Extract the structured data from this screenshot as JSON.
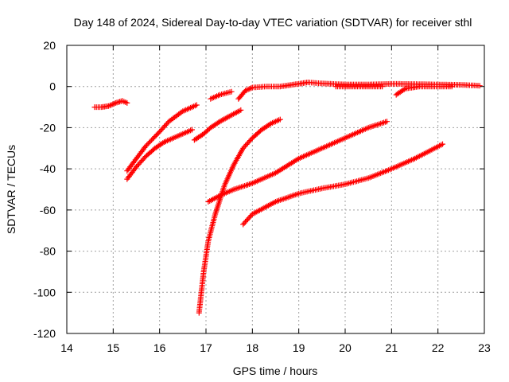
{
  "chart_data": {
    "type": "scatter",
    "title": "Day 148 of 2024, Sidereal Day-to-day VTEC variation (SDTVAR) for receiver sthl",
    "xlabel": "GPS time / hours",
    "ylabel": "SDTVAR / TECUs",
    "xlim": [
      14,
      23
    ],
    "ylim": [
      -120,
      20
    ],
    "xticks": [
      14,
      15,
      16,
      17,
      18,
      19,
      20,
      21,
      22,
      23
    ],
    "yticks": [
      -120,
      -100,
      -80,
      -60,
      -40,
      -20,
      0,
      20
    ],
    "xtick_labels": [
      "14",
      "15",
      "16",
      "17",
      "18",
      "19",
      "20",
      "21",
      "22",
      "23"
    ],
    "ytick_labels": [
      "-120",
      "-100",
      "-80",
      "-60",
      "-40",
      "-20",
      "0",
      "20"
    ],
    "grid": true,
    "marker": "+",
    "color": "#ff0000",
    "series": [
      {
        "name": "arc-1",
        "x": [
          14.6,
          14.75,
          14.9,
          15.05,
          15.2,
          15.3
        ],
        "y": [
          -10,
          -10,
          -9.5,
          -8,
          -7,
          -8
        ]
      },
      {
        "name": "arc-2",
        "x": [
          15.3,
          15.5,
          15.7,
          16.0,
          16.2,
          16.5,
          16.8
        ],
        "y": [
          -41,
          -35,
          -29,
          -22,
          -17,
          -12,
          -9
        ]
      },
      {
        "name": "arc-3",
        "x": [
          15.3,
          15.5,
          15.7,
          15.9,
          16.1,
          16.4,
          16.7
        ],
        "y": [
          -45,
          -39,
          -34,
          -30,
          -27,
          -24,
          -21
        ]
      },
      {
        "name": "arc-4",
        "x": [
          16.75,
          16.95,
          17.1,
          17.3,
          17.5,
          17.75
        ],
        "y": [
          -26,
          -23,
          -20,
          -17,
          -14.5,
          -11.5
        ]
      },
      {
        "name": "arc-5",
        "x": [
          17.1,
          17.3,
          17.55
        ],
        "y": [
          -6,
          -4,
          -2.5
        ]
      },
      {
        "name": "arc-6",
        "x": [
          17.7,
          17.85,
          18.0,
          18.3,
          18.6,
          18.9,
          19.2,
          19.5,
          20.0,
          20.5,
          21.0,
          21.5,
          22.0,
          22.5,
          22.9
        ],
        "y": [
          -6,
          -2,
          -0.5,
          0,
          0,
          1,
          2,
          1.5,
          1,
          1,
          1.3,
          1.2,
          1,
          0.8,
          0.4
        ]
      },
      {
        "name": "arc-7",
        "x": [
          19.8,
          20.3,
          20.8
        ],
        "y": [
          0,
          0,
          0
        ]
      },
      {
        "name": "arc-8",
        "x": [
          21.1,
          21.3,
          21.6,
          22.0,
          22.3
        ],
        "y": [
          -4,
          -1,
          0,
          0,
          0
        ]
      },
      {
        "name": "arc-9",
        "x": [
          16.85,
          16.9,
          16.95,
          17.05,
          17.2,
          17.4,
          17.6,
          17.8,
          18.0,
          18.2,
          18.4,
          18.6
        ],
        "y": [
          -110,
          -100,
          -90,
          -75,
          -62,
          -48,
          -38,
          -30,
          -25,
          -21,
          -18,
          -16
        ]
      },
      {
        "name": "arc-10",
        "x": [
          17.05,
          17.3,
          17.6,
          18.0,
          18.5,
          19.0,
          19.5,
          20.0,
          20.5,
          20.9
        ],
        "y": [
          -56,
          -53,
          -50,
          -47,
          -42,
          -35,
          -30,
          -25,
          -20,
          -17
        ]
      },
      {
        "name": "arc-11",
        "x": [
          17.8,
          18.0,
          18.5,
          19.0,
          19.5,
          20.0,
          20.5,
          21.0,
          21.5,
          22.1
        ],
        "y": [
          -67,
          -62,
          -56,
          -52,
          -49.5,
          -47.5,
          -44.5,
          -40,
          -35,
          -28
        ]
      }
    ]
  }
}
